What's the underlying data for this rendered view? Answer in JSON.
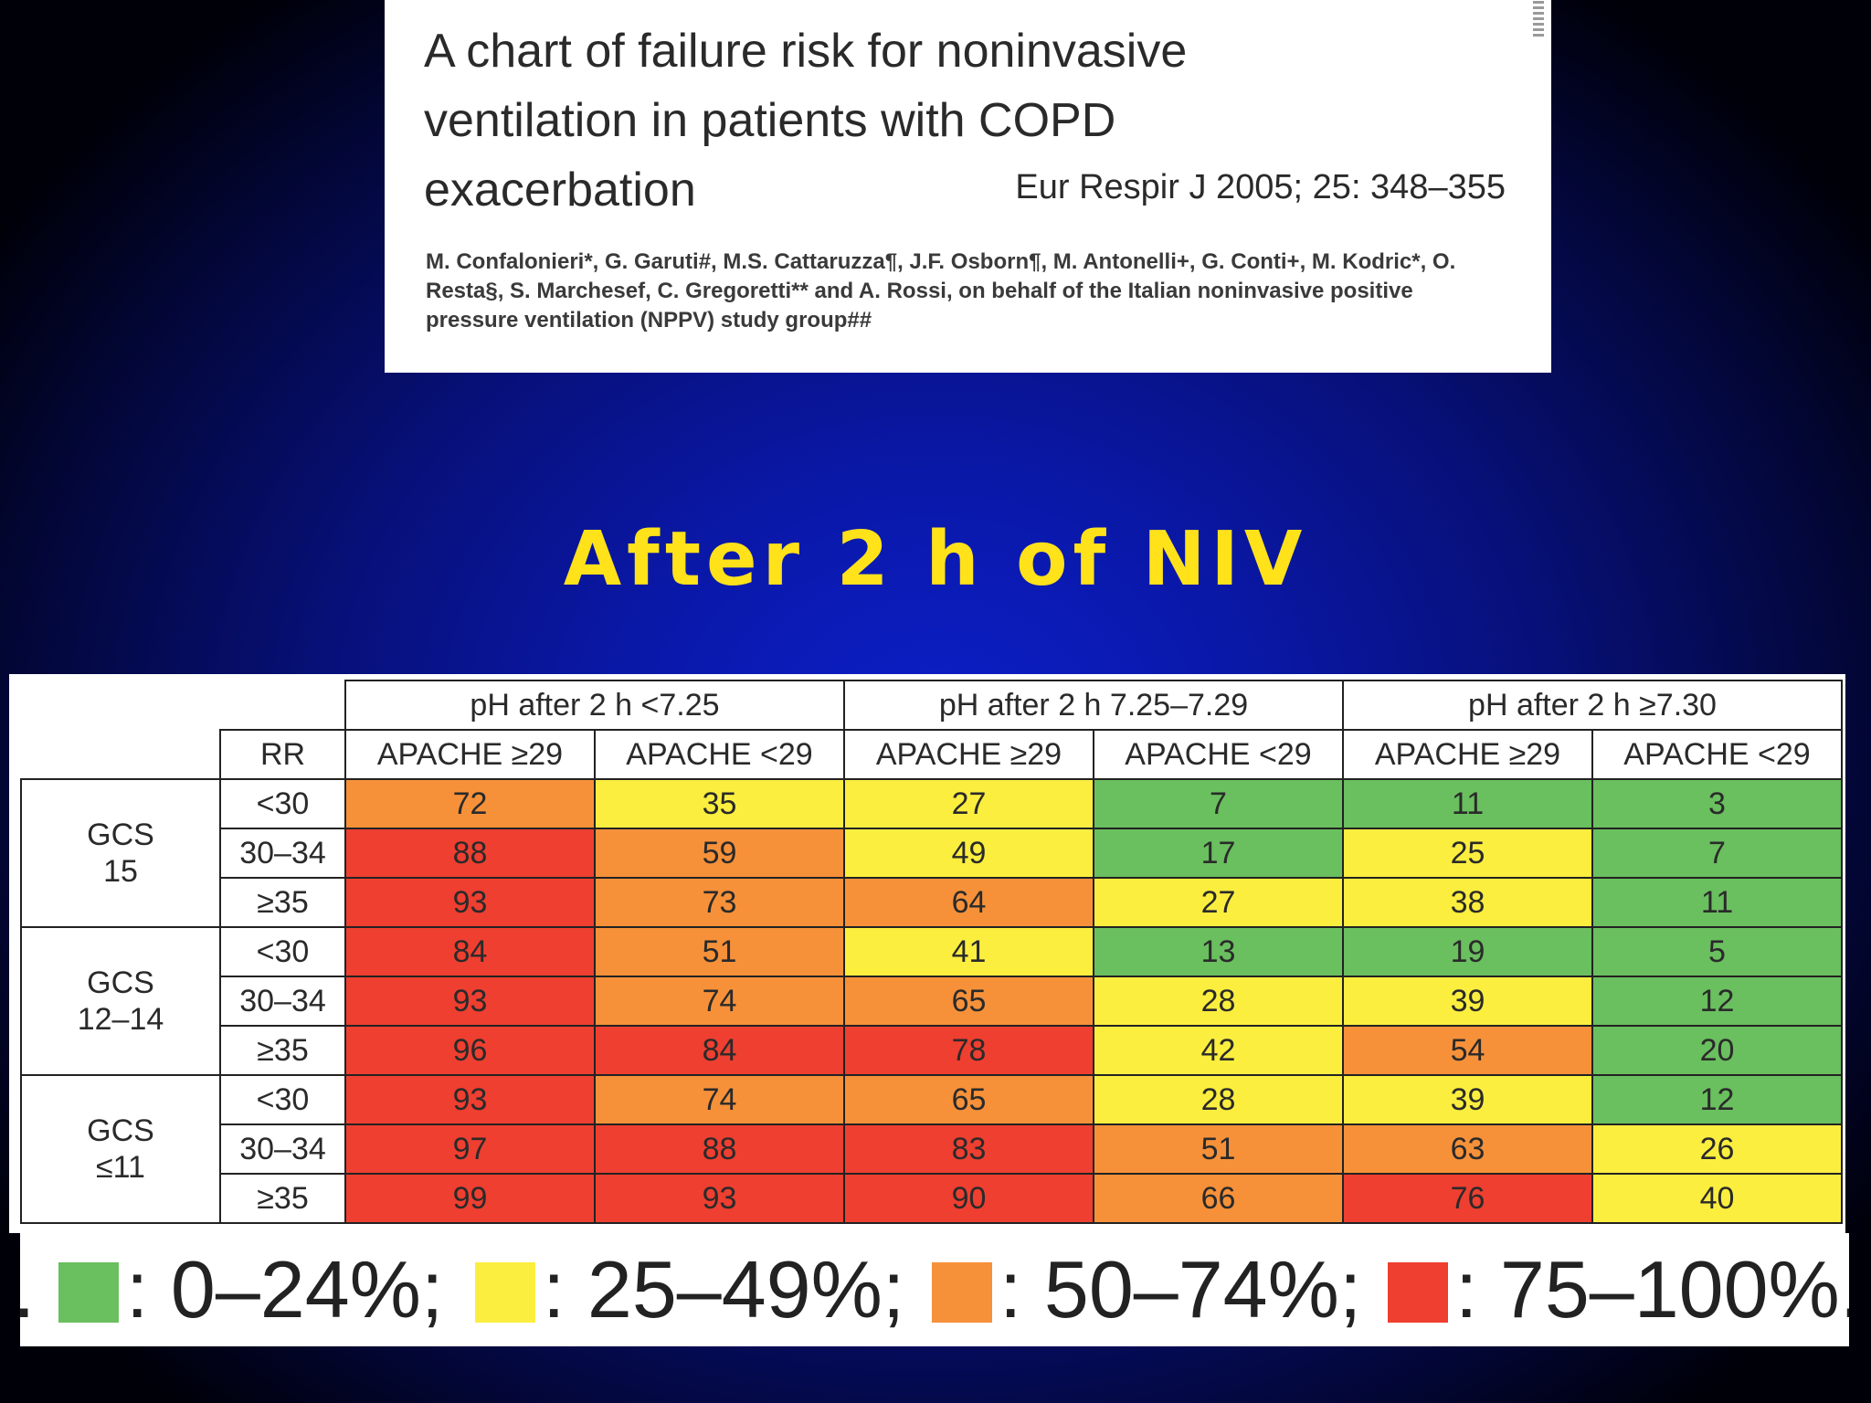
{
  "paper": {
    "title": "A chart of failure risk for noninvasive ventilation in patients with COPD exacerbation",
    "journal": "Eur Respir J 2005; 25: 348–355",
    "authors": "M. Confalonieri*, G. Garuti#, M.S. Cattaruzza¶, J.F. Osborn¶, M. Antonelli+, G. Conti+, M. Kodric*, O. Resta§, S. Marchesef, C. Gregoretti** and A. Rossi, on behalf of the Italian noninvasive positive pressure ventilation (NPPV) study group##"
  },
  "slide": {
    "title": "After 2 h of NIV"
  },
  "colors": {
    "green": "#6abf5f",
    "yellow": "#fbee3f",
    "orange": "#f6913a",
    "red": "#ee3f30"
  },
  "chart_data": {
    "type": "table",
    "title": "After 2 h of NIV",
    "ph_groups": [
      "pH after 2 h <7.25",
      "pH after 2 h 7.25–7.29",
      "pH after 2 h ≥7.30"
    ],
    "rr_header": "RR",
    "columns": [
      "APACHE ≥29",
      "APACHE <29",
      "APACHE ≥29",
      "APACHE <29",
      "APACHE ≥29",
      "APACHE <29"
    ],
    "gcs_groups": [
      {
        "line1": "GCS",
        "line2": "15",
        "rows": [
          {
            "rr": "<30",
            "values": [
              72,
              35,
              27,
              7,
              11,
              3
            ]
          },
          {
            "rr": "30–34",
            "values": [
              88,
              59,
              49,
              17,
              25,
              7
            ]
          },
          {
            "rr": "≥35",
            "values": [
              93,
              73,
              64,
              27,
              38,
              11
            ]
          }
        ]
      },
      {
        "line1": "GCS",
        "line2": "12–14",
        "rows": [
          {
            "rr": "<30",
            "values": [
              84,
              51,
              41,
              13,
              19,
              5
            ]
          },
          {
            "rr": "30–34",
            "values": [
              93,
              74,
              65,
              28,
              39,
              12
            ]
          },
          {
            "rr": "≥35",
            "values": [
              96,
              84,
              78,
              42,
              54,
              20
            ]
          }
        ]
      },
      {
        "line1": "GCS",
        "line2": "≤11",
        "rows": [
          {
            "rr": "<30",
            "values": [
              93,
              74,
              65,
              28,
              39,
              12
            ]
          },
          {
            "rr": "30–34",
            "values": [
              97,
              88,
              83,
              51,
              63,
              26
            ]
          },
          {
            "rr": "≥35",
            "values": [
              99,
              93,
              90,
              66,
              76,
              40
            ]
          }
        ]
      }
    ],
    "legend": [
      {
        "color": "green",
        "label": ": 0–24%;",
        "min": 0,
        "max": 24
      },
      {
        "color": "yellow",
        "label": ": 25–49%;",
        "min": 25,
        "max": 49
      },
      {
        "color": "orange",
        "label": ": 50–74%;",
        "min": 50,
        "max": 74
      },
      {
        "color": "red",
        "label": ": 75–100%.",
        "min": 75,
        "max": 100
      }
    ],
    "legend_lead": "."
  }
}
